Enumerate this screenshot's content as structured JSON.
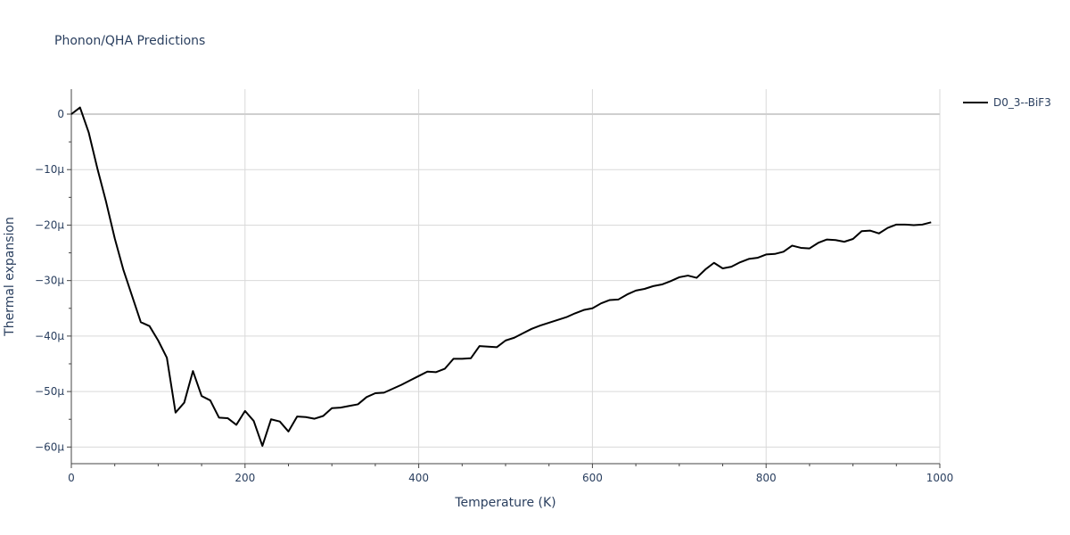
{
  "chart_data": {
    "type": "line",
    "title": "Phonon/QHA Predictions",
    "xlabel": "Temperature (K)",
    "ylabel": "Thermal expansion",
    "xlim": [
      0,
      1000
    ],
    "ylim": [
      -63,
      4.5
    ],
    "x_ticks": [
      0,
      200,
      400,
      600,
      800,
      1000
    ],
    "x_tick_labels": [
      "0",
      "200",
      "400",
      "600",
      "800",
      "1000"
    ],
    "y_ticks": [
      0,
      -10,
      -20,
      -30,
      -40,
      -50,
      -60
    ],
    "y_tick_labels": [
      "0",
      "−10μ",
      "−20μ",
      "−30μ",
      "−40μ",
      "−50μ",
      "−60μ"
    ],
    "y_unit_scale": 1e-06,
    "grid": true,
    "legend_position": "top-right",
    "series": [
      {
        "name": "D0_3--BiF3",
        "color": "#000000",
        "x": [
          0,
          10,
          20,
          30,
          40,
          50,
          60,
          70,
          80,
          90,
          100,
          110,
          120,
          130,
          140,
          150,
          160,
          170,
          180,
          190,
          200,
          210,
          220,
          230,
          240,
          250,
          260,
          270,
          280,
          290,
          300,
          310,
          320,
          330,
          340,
          350,
          360,
          370,
          380,
          390,
          400,
          410,
          420,
          430,
          440,
          450,
          460,
          470,
          480,
          490,
          500,
          510,
          520,
          530,
          540,
          550,
          560,
          570,
          580,
          590,
          600,
          610,
          620,
          630,
          640,
          650,
          660,
          670,
          680,
          690,
          700,
          710,
          720,
          730,
          740,
          750,
          760,
          770,
          780,
          790,
          800,
          810,
          820,
          830,
          840,
          850,
          860,
          870,
          880,
          890,
          900,
          910,
          920,
          930,
          940,
          950,
          960,
          970,
          980,
          990
        ],
        "values": [
          0.0,
          1.2,
          -3.3,
          -9.8,
          -15.8,
          -22.4,
          -28.1,
          -32.8,
          -37.5,
          -38.2,
          -40.8,
          -43.9,
          -53.8,
          -52.0,
          -46.3,
          -50.8,
          -51.6,
          -54.7,
          -54.8,
          -56.0,
          -53.5,
          -55.3,
          -59.8,
          -55.0,
          -55.4,
          -57.2,
          -54.5,
          -54.6,
          -54.9,
          -54.4,
          -53.0,
          -52.9,
          -52.6,
          -52.3,
          -51.0,
          -50.3,
          -50.2,
          -49.5,
          -48.8,
          -48.0,
          -47.2,
          -46.4,
          -46.5,
          -45.9,
          -44.1,
          -44.1,
          -44.0,
          -41.8,
          -41.9,
          -42.0,
          -40.8,
          -40.3,
          -39.5,
          -38.7,
          -38.1,
          -37.6,
          -37.1,
          -36.6,
          -35.9,
          -35.3,
          -35.0,
          -34.1,
          -33.5,
          -33.4,
          -32.5,
          -31.8,
          -31.5,
          -31.0,
          -30.7,
          -30.1,
          -29.4,
          -29.1,
          -29.5,
          -28.0,
          -26.8,
          -27.8,
          -27.5,
          -26.7,
          -26.1,
          -25.9,
          -25.3,
          -25.2,
          -24.8,
          -23.7,
          -24.1,
          -24.2,
          -23.2,
          -22.6,
          -22.7,
          -23.0,
          -22.5,
          -21.1,
          -21.0,
          -21.5,
          -20.5,
          -19.9,
          -19.9,
          -20.0,
          -19.9,
          -19.5
        ]
      }
    ]
  }
}
